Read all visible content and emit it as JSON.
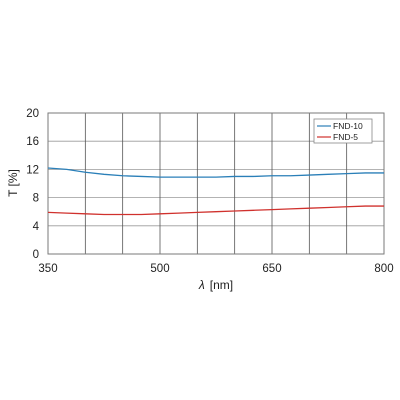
{
  "chart_data": {
    "type": "line",
    "xlabel_symbol": "λ",
    "xlabel_unit": "[nm]",
    "ylabel": "T [%]",
    "xlim": [
      350,
      800
    ],
    "ylim": [
      0,
      20
    ],
    "x_ticks": [
      350,
      500,
      650,
      800
    ],
    "x_gridlines": [
      350,
      400,
      450,
      500,
      550,
      600,
      650,
      700,
      750,
      800
    ],
    "y_ticks": [
      0,
      4,
      8,
      12,
      16,
      20
    ],
    "grid": true,
    "legend_position": "top-right",
    "series": [
      {
        "name": "FND-10",
        "color": "#2a7fb8",
        "x": [
          350,
          375,
          400,
          425,
          450,
          475,
          500,
          525,
          550,
          575,
          600,
          625,
          650,
          675,
          700,
          725,
          750,
          775,
          800
        ],
        "y": [
          12.2,
          12.0,
          11.6,
          11.3,
          11.1,
          11.0,
          10.9,
          10.9,
          10.9,
          10.9,
          11.0,
          11.0,
          11.1,
          11.1,
          11.2,
          11.3,
          11.4,
          11.5,
          11.5
        ]
      },
      {
        "name": "FND-5",
        "color": "#d0312d",
        "x": [
          350,
          375,
          400,
          425,
          450,
          475,
          500,
          525,
          550,
          575,
          600,
          625,
          650,
          675,
          700,
          725,
          750,
          775,
          800
        ],
        "y": [
          5.9,
          5.8,
          5.7,
          5.6,
          5.6,
          5.6,
          5.7,
          5.8,
          5.9,
          6.0,
          6.1,
          6.2,
          6.3,
          6.4,
          6.5,
          6.6,
          6.7,
          6.8,
          6.8
        ]
      }
    ]
  }
}
